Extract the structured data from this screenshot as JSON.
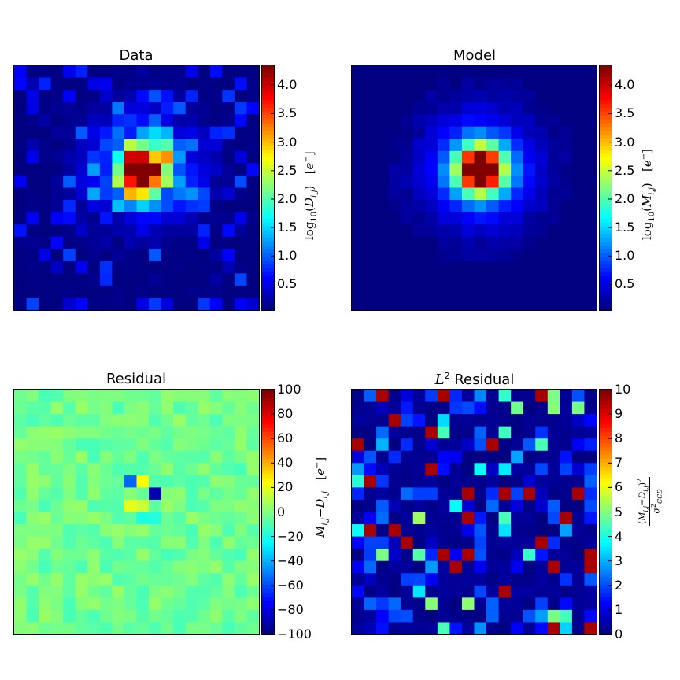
{
  "chart_data": [
    {
      "type": "heatmap",
      "title": "Data",
      "colormap": "jet",
      "grid_size": [
        20,
        20
      ],
      "colorbar": {
        "label": "log10(D_{i,j}) [e^-]",
        "range": [
          0.05,
          4.35
        ],
        "ticks": [
          0.5,
          1.0,
          1.5,
          2.0,
          2.5,
          3.0,
          3.5,
          4.0
        ],
        "tick_labels": [
          "0.5",
          "1.0",
          "1.5",
          "2.0",
          "2.5",
          "3.0",
          "3.5",
          "4.0"
        ]
      },
      "peak": {
        "row": 8,
        "col": 10,
        "value": 4.3
      }
    },
    {
      "type": "heatmap",
      "title": "Model",
      "colormap": "jet",
      "grid_size": [
        20,
        20
      ],
      "colorbar": {
        "label": "log10(M_{i,j}) [e^-]",
        "range": [
          0.05,
          4.35
        ],
        "ticks": [
          0.5,
          1.0,
          1.5,
          2.0,
          2.5,
          3.0,
          3.5,
          4.0
        ],
        "tick_labels": [
          "0.5",
          "1.0",
          "1.5",
          "2.0",
          "2.5",
          "3.0",
          "3.5",
          "4.0"
        ]
      },
      "peak": {
        "row": 8,
        "col": 10,
        "value": 4.3
      }
    },
    {
      "type": "heatmap",
      "title": "Residual",
      "colormap": "jet",
      "grid_size": [
        20,
        20
      ],
      "colorbar": {
        "label": "M_{i,j} − D_{i,j} [e^-]",
        "range": [
          -100,
          100
        ],
        "ticks": [
          -100,
          -80,
          -60,
          -40,
          -20,
          0,
          20,
          40,
          60,
          80,
          100
        ],
        "tick_labels": [
          "−100",
          "−80",
          "−60",
          "−40",
          "−20",
          "0",
          "20",
          "40",
          "60",
          "80",
          "100"
        ]
      }
    },
    {
      "type": "heatmap",
      "title": "L² Residual",
      "title_parts": {
        "math": "L",
        "sup": "2",
        "rest": " Residual"
      },
      "colormap": "jet",
      "grid_size": [
        20,
        20
      ],
      "colorbar": {
        "label": "(M_{i,j} − D_{i,j})² / σ²_CCD",
        "range": [
          0,
          10
        ],
        "ticks": [
          0,
          1,
          2,
          3,
          4,
          5,
          6,
          7,
          8,
          9,
          10
        ],
        "tick_labels": [
          "0",
          "1",
          "2",
          "3",
          "4",
          "5",
          "6",
          "7",
          "8",
          "9",
          "10"
        ]
      }
    }
  ]
}
